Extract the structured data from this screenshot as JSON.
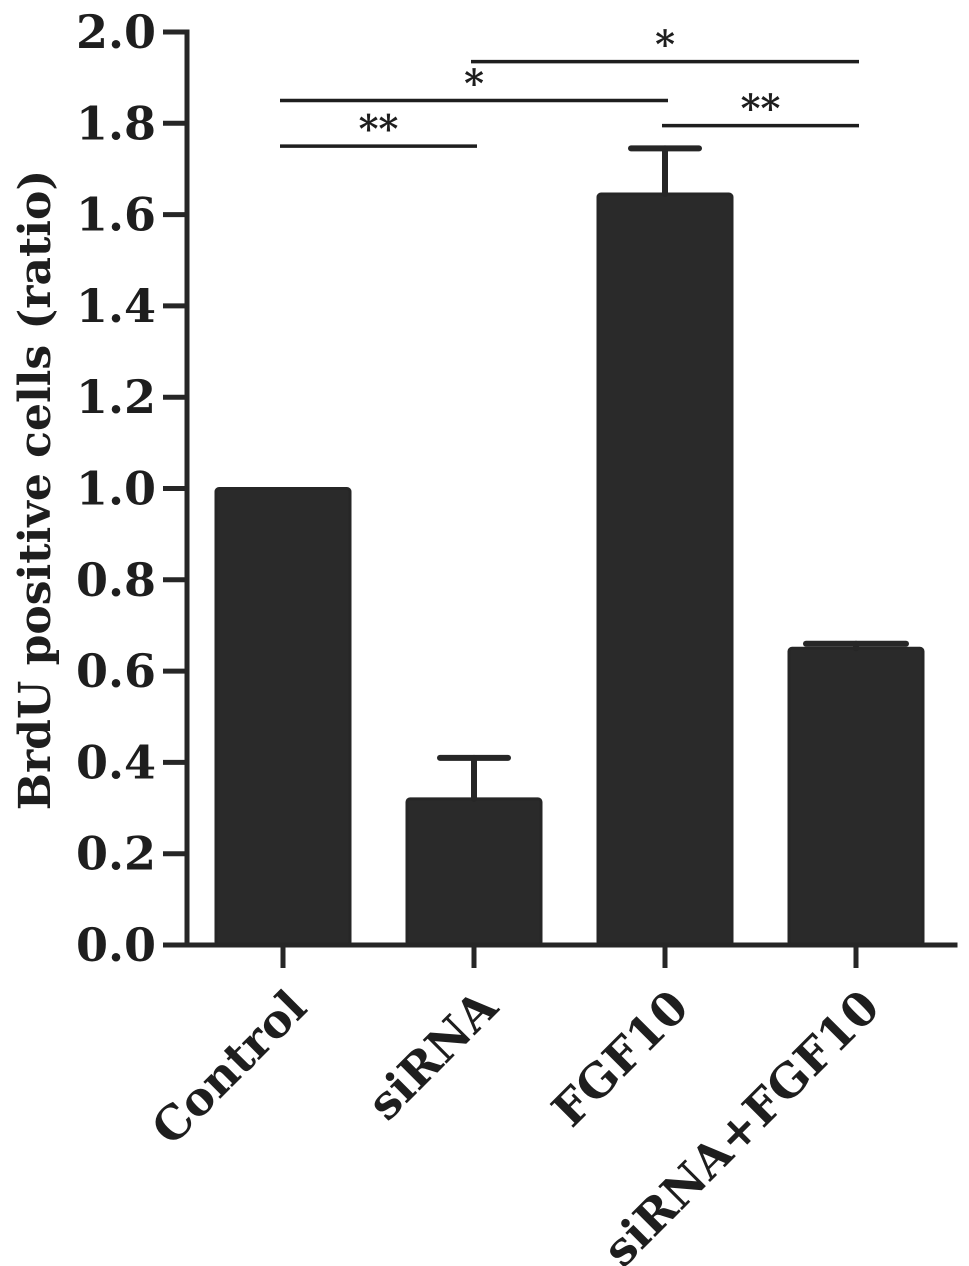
{
  "chart_data": {
    "type": "bar",
    "title": "",
    "xlabel": "",
    "ylabel": "BrdU positive cells (ratio)",
    "ylim": [
      0,
      2.0
    ],
    "yticks": [
      "0.0",
      "0.2",
      "0.4",
      "0.6",
      "0.8",
      "1.0",
      "1.2",
      "1.4",
      "1.6",
      "1.8",
      "2.0"
    ],
    "categories": [
      "Control",
      "siRNA",
      "FGF10",
      "siRNA+FGF10"
    ],
    "values": [
      1.0,
      0.32,
      1.645,
      0.65
    ],
    "errors": [
      0.0,
      0.09,
      0.1,
      0.01
    ],
    "bar_color": "#2a2a2a",
    "significance": [
      {
        "from": 0,
        "to": 1,
        "y": 1.75,
        "label": "**"
      },
      {
        "from": 0,
        "to": 2,
        "y": 1.85,
        "label": "*"
      },
      {
        "from": 2,
        "to": 3,
        "y": 1.795,
        "label": "**"
      },
      {
        "from": 1,
        "to": 3,
        "y": 1.935,
        "label": "*"
      }
    ],
    "grid": false,
    "legend": "none"
  }
}
